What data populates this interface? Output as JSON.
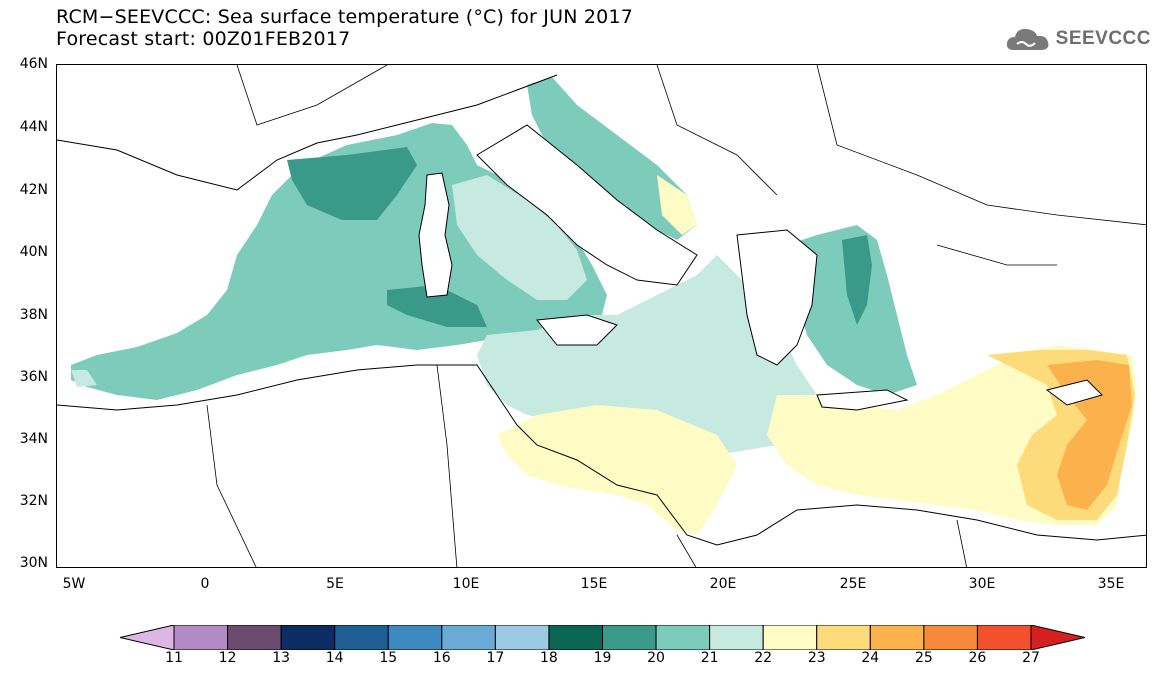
{
  "title": {
    "line1": "RCM−SEEVCCC: Sea surface temperature (°C) for JUN 2017",
    "line2": "Forecast start: 00Z01FEB2017"
  },
  "logo": {
    "text": "SEEVCCC",
    "icon": "cloud-icon"
  },
  "map": {
    "lat_labels": [
      "46N",
      "44N",
      "42N",
      "40N",
      "38N",
      "36N",
      "34N",
      "32N",
      "30N"
    ],
    "lon_labels": [
      "5W",
      "0",
      "5E",
      "10E",
      "15E",
      "20E",
      "25E",
      "30E",
      "35E"
    ]
  },
  "colorbar": {
    "labels": [
      "11",
      "12",
      "13",
      "14",
      "15",
      "16",
      "17",
      "18",
      "19",
      "20",
      "21",
      "22",
      "23",
      "24",
      "25",
      "26",
      "27"
    ],
    "colors": {
      "below": "#dcb6e4",
      "bins": [
        "#b18cc4",
        "#6c4b70",
        "#0c2d63",
        "#1e5f96",
        "#3d89c0",
        "#6aaad6",
        "#9cc9e3",
        "#0a6652",
        "#3a9a8a",
        "#7ccbbb",
        "#c6e9e0",
        "#fffbc4",
        "#fdda7a",
        "#fbb24c",
        "#f78a3a",
        "#f2502e"
      ],
      "above": "#d61f1f"
    }
  }
}
